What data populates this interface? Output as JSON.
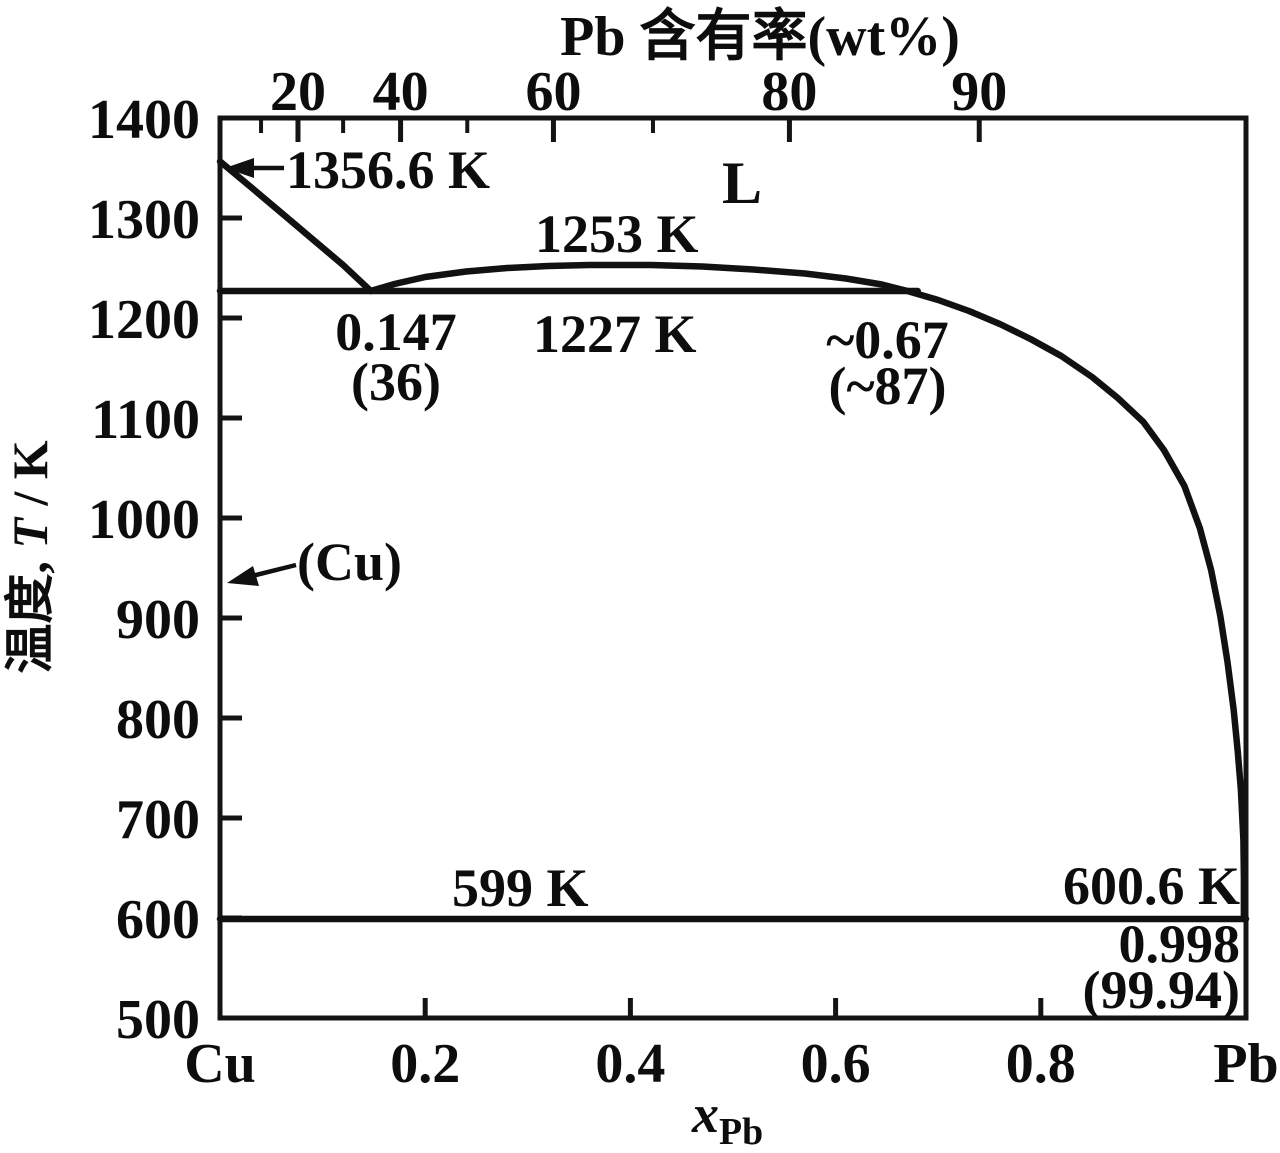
{
  "figure": {
    "top_axis_title": "Pb 含有率(wt%)",
    "y_title_prefix": "温度, ",
    "y_title_symbol": "T",
    "y_title_unit": " / K",
    "x_title_var": "x",
    "x_title_sub": "Pb"
  },
  "annotations": {
    "melting_cu": "1356.6 K",
    "liquid_region": "L",
    "critical_temp": "1253 K",
    "monotectic_x": "0.147",
    "monotectic_wt": "(36)",
    "monotectic_temp": "1227 K",
    "l2_x": "~0.67",
    "l2_wt": "(~87)",
    "cu_phase": "(Cu)",
    "eutectic_temp": "599 K",
    "melting_pb": "600.6 K",
    "eutectic_x": "0.998",
    "eutectic_wt": "(99.94)"
  },
  "chart_data": {
    "type": "line",
    "title": "Cu-Pb binary phase diagram (temperature vs mole fraction of Pb)",
    "x_axis": {
      "label": "x_Pb",
      "range": [
        0,
        1
      ],
      "ticks": [
        {
          "x": 0,
          "label": "Cu",
          "tick": false
        },
        {
          "x": 0.2,
          "label": "0.2",
          "tick": true
        },
        {
          "x": 0.4,
          "label": "0.4",
          "tick": true
        },
        {
          "x": 0.6,
          "label": "0.6",
          "tick": true
        },
        {
          "x": 0.8,
          "label": "0.8",
          "tick": true
        },
        {
          "x": 1,
          "label": "Pb",
          "tick": false
        }
      ]
    },
    "y_axis": {
      "label": "温度, T / K",
      "range": [
        500,
        1400
      ],
      "ticks": [
        {
          "T": 1400,
          "label": "1400",
          "tick": false
        },
        {
          "T": 1300,
          "label": "1300",
          "tick": true
        },
        {
          "T": 1200,
          "label": "1200",
          "tick": true
        },
        {
          "T": 1100,
          "label": "1100",
          "tick": true
        },
        {
          "T": 1000,
          "label": "1000",
          "tick": true
        },
        {
          "T": 900,
          "label": "900",
          "tick": true
        },
        {
          "T": 800,
          "label": "800",
          "tick": true
        },
        {
          "T": 700,
          "label": "700",
          "tick": true
        },
        {
          "T": 600,
          "label": "600",
          "tick": true
        },
        {
          "T": 500,
          "label": "500",
          "tick": false
        }
      ]
    },
    "top_axis": {
      "label": "Pb 含有率(wt%)",
      "major_ticks": [
        {
          "wt": "20",
          "x": 0.076
        },
        {
          "wt": "40",
          "x": 0.176
        },
        {
          "wt": "60",
          "x": 0.325
        },
        {
          "wt": "80",
          "x": 0.555
        },
        {
          "wt": "90",
          "x": 0.74
        }
      ],
      "minor_ticks_x": [
        0.04,
        0.12,
        0.241,
        0.422
      ]
    },
    "series": [
      {
        "name": "liquidus-cu",
        "points": [
          [
            0,
            1356.6
          ],
          [
            0.03,
            1331
          ],
          [
            0.06,
            1305
          ],
          [
            0.09,
            1279
          ],
          [
            0.12,
            1253
          ],
          [
            0.147,
            1227
          ]
        ]
      },
      {
        "name": "binodal-liquidus-pb",
        "points": [
          [
            0.147,
            1227
          ],
          [
            0.17,
            1234
          ],
          [
            0.2,
            1241
          ],
          [
            0.24,
            1246.5
          ],
          [
            0.28,
            1250
          ],
          [
            0.32,
            1252
          ],
          [
            0.36,
            1253
          ],
          [
            0.42,
            1253
          ],
          [
            0.47,
            1251.5
          ],
          [
            0.52,
            1248.5
          ],
          [
            0.57,
            1244.5
          ],
          [
            0.61,
            1239.5
          ],
          [
            0.645,
            1233.5
          ],
          [
            0.67,
            1227
          ],
          [
            0.7,
            1218
          ],
          [
            0.73,
            1207
          ],
          [
            0.76,
            1194
          ],
          [
            0.79,
            1179
          ],
          [
            0.82,
            1162
          ],
          [
            0.85,
            1141
          ],
          [
            0.875,
            1120
          ],
          [
            0.9,
            1096
          ],
          [
            0.92,
            1068
          ],
          [
            0.94,
            1032
          ],
          [
            0.955,
            990
          ],
          [
            0.966,
            948
          ],
          [
            0.975,
            902
          ],
          [
            0.982,
            856
          ],
          [
            0.988,
            808
          ],
          [
            0.992,
            766
          ],
          [
            0.995,
            728
          ],
          [
            0.9975,
            678
          ],
          [
            0.998,
            640
          ],
          [
            0.998,
            599
          ]
        ]
      },
      {
        "name": "monotectic-tie-line",
        "points": [
          [
            0,
            1227
          ],
          [
            0.68,
            1227
          ]
        ]
      },
      {
        "name": "eutectic-tie-line",
        "points": [
          [
            0,
            599
          ],
          [
            1,
            599
          ]
        ]
      }
    ],
    "points_of_interest": [
      {
        "name": "Cu melting point",
        "x": 0,
        "T_K": 1356.6
      },
      {
        "name": "monotectic point",
        "x": 0.147,
        "wt_pct": 36,
        "T_K": 1227
      },
      {
        "name": "binodal critical point",
        "T_K": 1253
      },
      {
        "name": "L2 monotectic composition",
        "x": 0.67,
        "wt_pct": 87,
        "T_K": 1227,
        "approx": true
      },
      {
        "name": "eutectic point",
        "x": 0.998,
        "wt_pct": 99.94,
        "T_K": 599
      },
      {
        "name": "Pb melting point",
        "x": 1,
        "T_K": 600.6
      }
    ],
    "phase_labels": [
      "L",
      "(Cu)"
    ],
    "legend": "none",
    "grid": false,
    "line_color": "#111111"
  }
}
